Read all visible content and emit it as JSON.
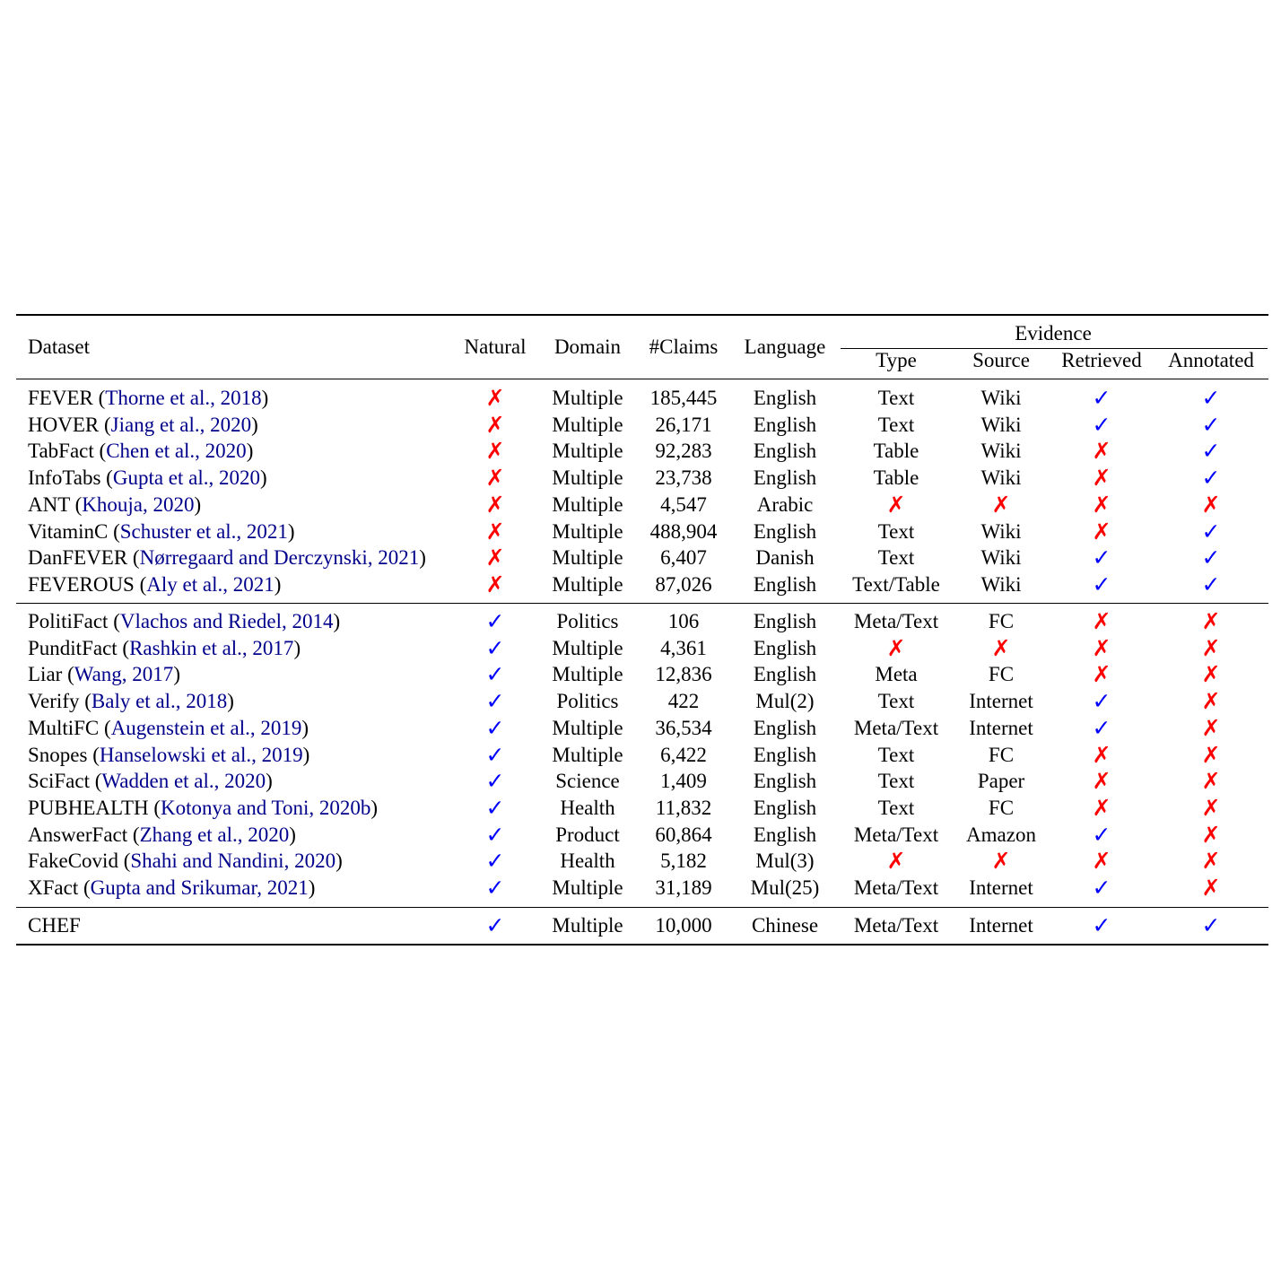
{
  "header": {
    "dataset": "Dataset",
    "natural": "Natural",
    "domain": "Domain",
    "claims": "#Claims",
    "language": "Language",
    "evidence": "Evidence",
    "type": "Type",
    "source": "Source",
    "retrieved": "Retrieved",
    "annotated": "Annotated"
  },
  "groups": [
    [
      {
        "name": "FEVER",
        "cite": "Thorne et al., 2018",
        "natural": false,
        "domain": "Multiple",
        "claims": "185,445",
        "language": "English",
        "type": "Text",
        "source": "Wiki",
        "retrieved": true,
        "annotated": true
      },
      {
        "name": "HOVER",
        "cite": "Jiang et al., 2020",
        "natural": false,
        "domain": "Multiple",
        "claims": "26,171",
        "language": "English",
        "type": "Text",
        "source": "Wiki",
        "retrieved": true,
        "annotated": true
      },
      {
        "name": "TabFact",
        "cite": "Chen et al., 2020",
        "natural": false,
        "domain": "Multiple",
        "claims": "92,283",
        "language": "English",
        "type": "Table",
        "source": "Wiki",
        "retrieved": false,
        "annotated": true
      },
      {
        "name": "InfoTabs",
        "cite": "Gupta et al., 2020",
        "natural": false,
        "domain": "Multiple",
        "claims": "23,738",
        "language": "English",
        "type": "Table",
        "source": "Wiki",
        "retrieved": false,
        "annotated": true
      },
      {
        "name": "ANT",
        "cite": "Khouja, 2020",
        "natural": false,
        "domain": "Multiple",
        "claims": "4,547",
        "language": "Arabic",
        "type": false,
        "source": false,
        "retrieved": false,
        "annotated": false
      },
      {
        "name": "VitaminC",
        "cite": "Schuster et al., 2021",
        "natural": false,
        "domain": "Multiple",
        "claims": "488,904",
        "language": "English",
        "type": "Text",
        "source": "Wiki",
        "retrieved": false,
        "annotated": true
      },
      {
        "name": "DanFEVER",
        "cite": "Nørregaard and Derczynski, 2021",
        "natural": false,
        "domain": "Multiple",
        "claims": "6,407",
        "language": "Danish",
        "type": "Text",
        "source": "Wiki",
        "retrieved": true,
        "annotated": true
      },
      {
        "name": "FEVEROUS",
        "cite": "Aly et al., 2021",
        "natural": false,
        "domain": "Multiple",
        "claims": "87,026",
        "language": "English",
        "type": "Text/Table",
        "source": "Wiki",
        "retrieved": true,
        "annotated": true
      }
    ],
    [
      {
        "name": "PolitiFact",
        "cite": "Vlachos and Riedel, 2014",
        "natural": true,
        "domain": "Politics",
        "claims": "106",
        "language": "English",
        "type": "Meta/Text",
        "source": "FC",
        "retrieved": false,
        "annotated": false
      },
      {
        "name": "PunditFact",
        "cite": "Rashkin et al., 2017",
        "natural": true,
        "domain": "Multiple",
        "claims": "4,361",
        "language": "English",
        "type": false,
        "source": false,
        "retrieved": false,
        "annotated": false
      },
      {
        "name": "Liar",
        "cite": "Wang, 2017",
        "natural": true,
        "domain": "Multiple",
        "claims": "12,836",
        "language": "English",
        "type": "Meta",
        "source": "FC",
        "retrieved": false,
        "annotated": false
      },
      {
        "name": "Verify",
        "cite": "Baly et al., 2018",
        "natural": true,
        "domain": "Politics",
        "claims": "422",
        "language": "Mul(2)",
        "type": "Text",
        "source": "Internet",
        "retrieved": true,
        "annotated": false
      },
      {
        "name": "MultiFC",
        "cite": "Augenstein et al., 2019",
        "natural": true,
        "domain": "Multiple",
        "claims": "36,534",
        "language": "English",
        "type": "Meta/Text",
        "source": "Internet",
        "retrieved": true,
        "annotated": false
      },
      {
        "name": "Snopes",
        "cite": "Hanselowski et al., 2019",
        "natural": true,
        "domain": "Multiple",
        "claims": "6,422",
        "language": "English",
        "type": "Text",
        "source": "FC",
        "retrieved": false,
        "annotated": false
      },
      {
        "name": "SciFact",
        "cite": "Wadden et al., 2020",
        "natural": true,
        "domain": "Science",
        "claims": "1,409",
        "language": "English",
        "type": "Text",
        "source": "Paper",
        "retrieved": false,
        "annotated": false
      },
      {
        "name": "PUBHEALTH",
        "cite": "Kotonya and Toni, 2020b",
        "natural": true,
        "domain": "Health",
        "claims": "11,832",
        "language": "English",
        "type": "Text",
        "source": "FC",
        "retrieved": false,
        "annotated": false
      },
      {
        "name": "AnswerFact",
        "cite": "Zhang et al., 2020",
        "natural": true,
        "domain": "Product",
        "claims": "60,864",
        "language": "English",
        "type": "Meta/Text",
        "source": "Amazon",
        "retrieved": true,
        "annotated": false
      },
      {
        "name": "FakeCovid",
        "cite": "Shahi and Nandini, 2020",
        "natural": true,
        "domain": "Health",
        "claims": "5,182",
        "language": "Mul(3)",
        "type": false,
        "source": false,
        "retrieved": false,
        "annotated": false
      },
      {
        "name": "XFact",
        "cite": "Gupta and Srikumar, 2021",
        "natural": true,
        "domain": "Multiple",
        "claims": "31,189",
        "language": "Mul(25)",
        "type": "Meta/Text",
        "source": "Internet",
        "retrieved": true,
        "annotated": false
      }
    ],
    [
      {
        "name": "CHEF",
        "cite": "",
        "natural": true,
        "domain": "Multiple",
        "claims": "10,000",
        "language": "Chinese",
        "type": "Meta/Text",
        "source": "Internet",
        "retrieved": true,
        "annotated": true
      }
    ]
  ],
  "symbols": {
    "check": "✓",
    "cross": "✗"
  },
  "colors": {
    "check": "#0000ff",
    "cross": "#ff0000",
    "citation": "#00008b"
  }
}
